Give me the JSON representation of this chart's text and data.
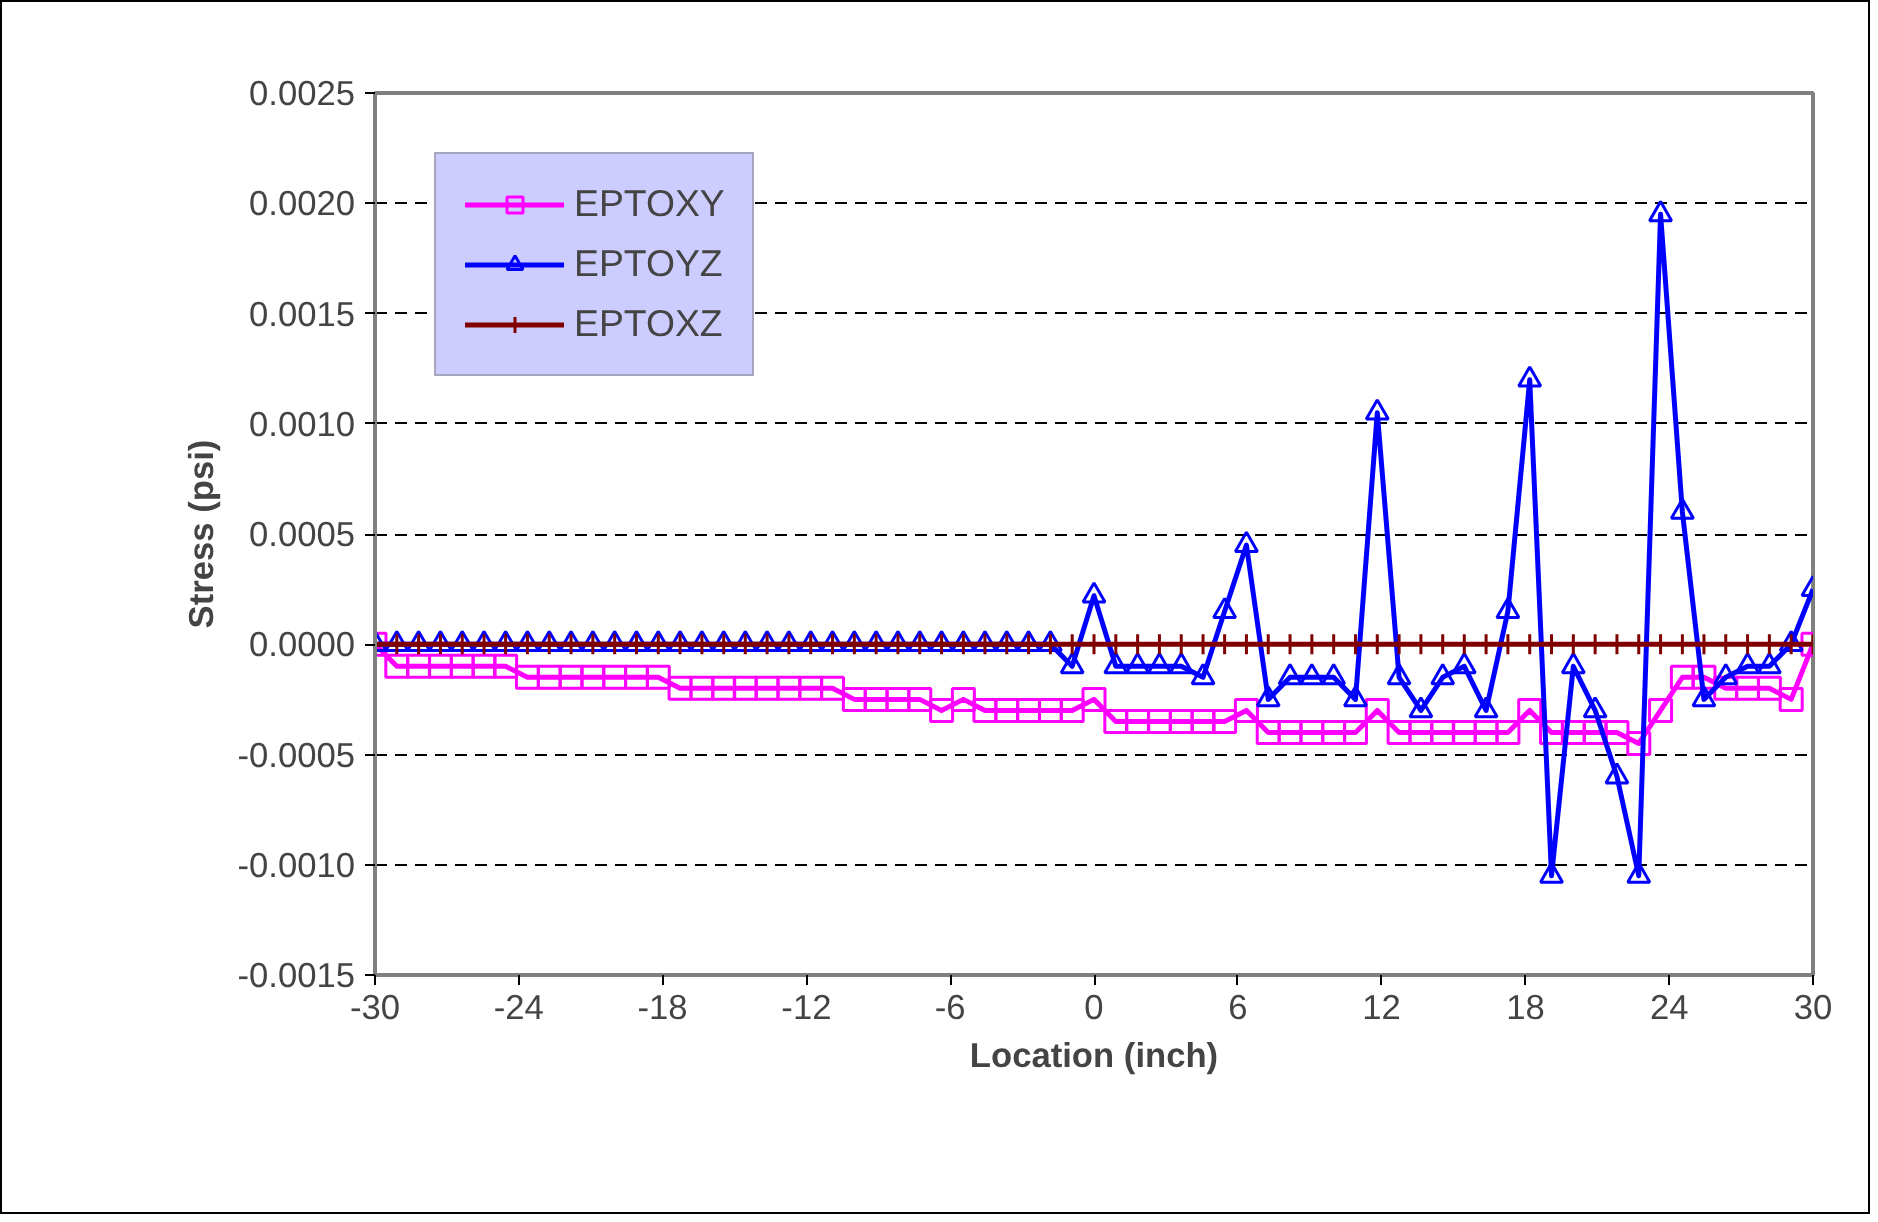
{
  "chart_data": {
    "type": "line",
    "xlabel": "Location (inch)",
    "ylabel": "Stress (psi)",
    "x": [
      -30,
      -29.09,
      -28.18,
      -27.27,
      -26.36,
      -25.45,
      -24.55,
      -23.64,
      -22.73,
      -21.82,
      -20.91,
      -20,
      -19.09,
      -18.18,
      -17.27,
      -16.36,
      -15.45,
      -14.55,
      -13.64,
      -12.73,
      -11.82,
      -10.91,
      -10,
      -9.09,
      -8.18,
      -7.27,
      -6.36,
      -5.45,
      -4.55,
      -3.64,
      -2.73,
      -1.82,
      -0.91,
      0,
      0.91,
      1.82,
      2.73,
      3.64,
      4.55,
      5.45,
      6.36,
      7.27,
      8.18,
      9.09,
      10,
      10.91,
      11.82,
      12.73,
      13.64,
      14.55,
      15.45,
      16.36,
      17.27,
      18.18,
      19.09,
      20,
      20.91,
      21.82,
      22.73,
      23.64,
      24.55,
      25.45,
      26.36,
      27.27,
      28.18,
      29.09,
      30
    ],
    "series": [
      {
        "name": "EPTOXY",
        "color": "#ff00ff",
        "marker": "square",
        "values": [
          0,
          -0.0001,
          -0.0001,
          -0.0001,
          -0.0001,
          -0.0001,
          -0.0001,
          -0.00015,
          -0.00015,
          -0.00015,
          -0.00015,
          -0.00015,
          -0.00015,
          -0.00015,
          -0.0002,
          -0.0002,
          -0.0002,
          -0.0002,
          -0.0002,
          -0.0002,
          -0.0002,
          -0.0002,
          -0.00025,
          -0.00025,
          -0.00025,
          -0.00025,
          -0.0003,
          -0.00025,
          -0.0003,
          -0.0003,
          -0.0003,
          -0.0003,
          -0.0003,
          -0.00025,
          -0.00035,
          -0.00035,
          -0.00035,
          -0.00035,
          -0.00035,
          -0.00035,
          -0.0003,
          -0.0004,
          -0.0004,
          -0.0004,
          -0.0004,
          -0.0004,
          -0.0003,
          -0.0004,
          -0.0004,
          -0.0004,
          -0.0004,
          -0.0004,
          -0.0004,
          -0.0003,
          -0.0004,
          -0.0004,
          -0.0004,
          -0.0004,
          -0.00045,
          -0.0003,
          -0.00015,
          -0.00015,
          -0.0002,
          -0.0002,
          -0.0002,
          -0.00025,
          0
        ]
      },
      {
        "name": "EPTOYZ",
        "color": "#0000ff",
        "marker": "triangle",
        "values": [
          0,
          0,
          0,
          0,
          0,
          0,
          0,
          -0.0,
          0,
          0,
          0,
          0,
          0,
          0,
          0,
          0,
          0,
          0,
          0,
          0,
          0,
          0,
          0,
          0,
          0,
          0,
          0,
          0,
          0,
          0,
          0,
          0,
          -0.0001,
          0.00022,
          -0.0001,
          -0.0001,
          -0.0001,
          -0.0001,
          -0.00015,
          0.00015,
          0.00045,
          -0.00025,
          -0.00015,
          -0.00015,
          -0.00015,
          -0.00025,
          0.00105,
          -0.00015,
          -0.0003,
          -0.00015,
          -0.0001,
          -0.0003,
          0.00015,
          0.0012,
          -0.00105,
          -0.0001,
          -0.0003,
          -0.0006,
          -0.00105,
          0.00195,
          0.0006,
          -0.00025,
          -0.00015,
          -0.0001,
          -0.0001,
          0,
          0.00025
        ]
      },
      {
        "name": "EPTOXZ",
        "color": "#800000",
        "marker": "cross",
        "values": [
          0,
          0,
          0,
          0,
          0,
          0,
          0,
          0,
          0,
          0,
          0,
          0,
          0,
          0,
          0,
          0,
          0,
          0,
          0,
          0,
          0,
          0,
          0,
          0,
          0,
          0,
          0,
          0,
          0,
          0,
          0,
          0,
          0,
          0,
          0,
          0,
          0,
          0,
          0,
          0,
          0,
          0,
          0,
          0,
          0,
          0,
          0,
          0,
          0,
          0,
          0,
          0,
          0,
          0,
          0,
          0,
          0,
          0,
          0,
          0,
          0,
          0,
          0,
          0,
          0,
          0,
          0
        ]
      }
    ],
    "xlim": [
      -30,
      30
    ],
    "xticks": [
      -30,
      -24,
      -18,
      -12,
      -6,
      0,
      6,
      12,
      18,
      24,
      30
    ],
    "ylim": [
      -0.0015,
      0.0025
    ],
    "yticks": [
      {
        "value": -0.0015,
        "label": "-0.0015"
      },
      {
        "value": -0.001,
        "label": "-0.0010"
      },
      {
        "value": -0.0005,
        "label": "-0.0005"
      },
      {
        "value": 0,
        "label": "0.0000"
      },
      {
        "value": 0.0005,
        "label": "0.0005"
      },
      {
        "value": 0.001,
        "label": "0.0010"
      },
      {
        "value": 0.0015,
        "label": "0.0015"
      },
      {
        "value": 0.002,
        "label": "0.0020"
      },
      {
        "value": 0.0025,
        "label": "0.0025"
      }
    ],
    "grid": "y",
    "legend": "top left",
    "line_style": "solid"
  }
}
